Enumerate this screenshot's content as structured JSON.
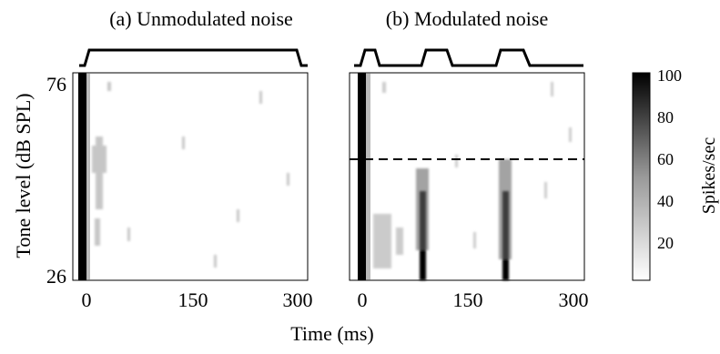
{
  "chart_data": [
    {
      "type": "heatmap",
      "title": "(a) Unmodulated noise",
      "xlabel": "Time (ms)",
      "ylabel": "Tone level (dB SPL)",
      "xlim": [
        -10,
        310
      ],
      "ylim": [
        24,
        78
      ],
      "xticks": [
        "0",
        "150",
        "300"
      ],
      "yticks": [
        "76",
        "26"
      ],
      "stimulus_envelope": {
        "shape": "continuous",
        "on_ms": 0,
        "off_ms": 290
      },
      "response": [
        {
          "time_ms": 0,
          "level_db": [
            26,
            76
          ],
          "rate_spikes_per_sec": 100,
          "description": "onset"
        },
        {
          "time_ms": 20,
          "level_db": [
            40,
            62
          ],
          "rate_spikes_per_sec": 20,
          "description": "weak sustained"
        }
      ]
    },
    {
      "type": "heatmap",
      "title": "(b) Modulated noise",
      "xlabel": "Time (ms)",
      "xlim": [
        -10,
        310
      ],
      "ylim": [
        24,
        78
      ],
      "xticks": [
        "0",
        "150",
        "300"
      ],
      "stimulus_envelope": {
        "shape": "modulated",
        "bursts_ms": [
          [
            0,
            18
          ],
          [
            75,
            110
          ],
          [
            185,
            215
          ]
        ]
      },
      "threshold_line_db": 58,
      "response": [
        {
          "time_ms": 0,
          "level_db": [
            26,
            76
          ],
          "rate_spikes_per_sec": 100,
          "description": "onset"
        },
        {
          "time_ms": 80,
          "level_db": [
            26,
            58
          ],
          "rate_spikes_per_sec": 90,
          "description": "burst response"
        },
        {
          "time_ms": 190,
          "level_db": [
            26,
            58
          ],
          "rate_spikes_per_sec": 90,
          "description": "burst response"
        }
      ]
    }
  ],
  "colorbar": {
    "label": "Spikes/sec",
    "range": [
      0,
      100
    ],
    "ticks": [
      "100",
      "80",
      "60",
      "40",
      "20"
    ]
  }
}
